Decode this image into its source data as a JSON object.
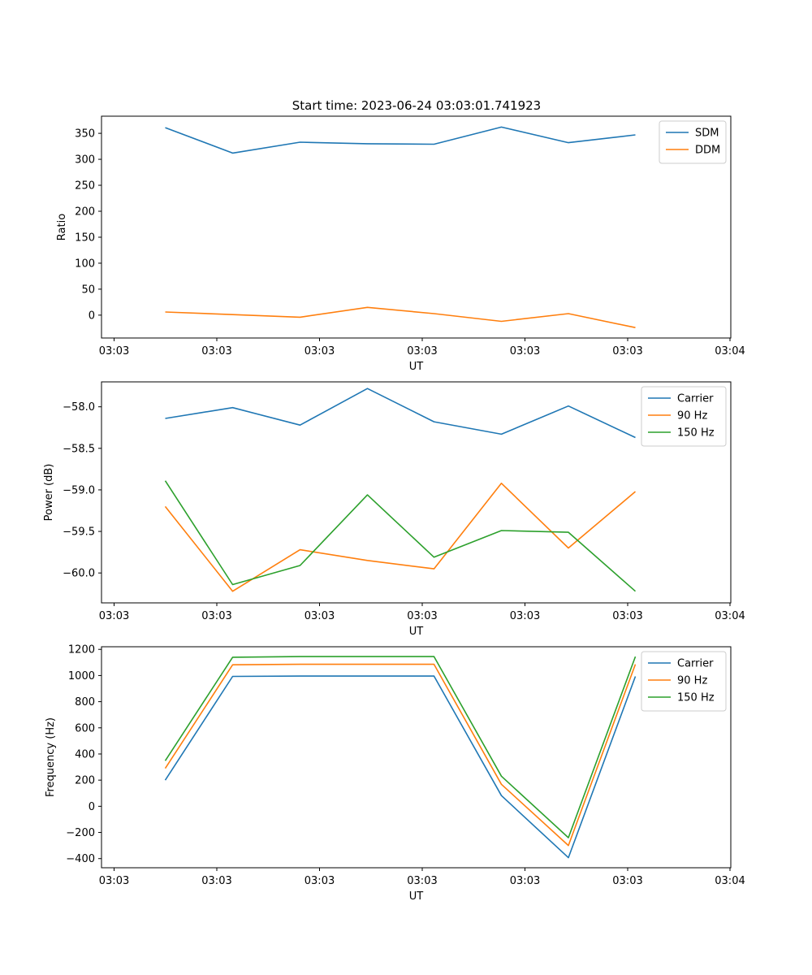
{
  "figure_title": "Start time: 2023-06-24 03:03:01.741923",
  "chart_data": [
    {
      "type": "line",
      "title": "Start time: 2023-06-24 03:03:01.741923",
      "xlabel": "UT",
      "ylabel": "Ratio",
      "xticks": [
        "03:03",
        "03:03",
        "03:03",
        "03:03",
        "03:03",
        "03:03",
        "03:04"
      ],
      "yticks": [
        0,
        50,
        100,
        150,
        200,
        250,
        300,
        350
      ],
      "ylim": [
        -44,
        383
      ],
      "legend_position": "upper-right",
      "series": [
        {
          "name": "SDM",
          "color": "#1f77b4",
          "values": [
            361,
            312,
            333,
            330,
            329,
            362,
            332,
            347
          ]
        },
        {
          "name": "DDM",
          "color": "#ff7f0e",
          "values": [
            6,
            1,
            -4,
            15,
            3,
            -12,
            3,
            -24
          ]
        }
      ]
    },
    {
      "type": "line",
      "title": "",
      "xlabel": "UT",
      "ylabel": "Power (dB)",
      "xticks": [
        "03:03",
        "03:03",
        "03:03",
        "03:03",
        "03:03",
        "03:03",
        "03:04"
      ],
      "yticks": [
        -58.0,
        -58.5,
        -59.0,
        -59.5,
        -60.0
      ],
      "ylim": [
        -60.36,
        -57.7
      ],
      "legend_position": "upper-right",
      "series": [
        {
          "name": "Carrier",
          "color": "#1f77b4",
          "values": [
            -58.14,
            -58.01,
            -58.22,
            -57.78,
            -58.18,
            -58.33,
            -57.99,
            -58.37
          ]
        },
        {
          "name": "90 Hz",
          "color": "#ff7f0e",
          "values": [
            -59.2,
            -60.22,
            -59.72,
            -59.85,
            -59.95,
            -58.92,
            -59.7,
            -59.02
          ]
        },
        {
          "name": "150 Hz",
          "color": "#2ca02c",
          "values": [
            -58.89,
            -60.14,
            -59.91,
            -59.06,
            -59.81,
            -59.49,
            -59.51,
            -60.22
          ]
        }
      ]
    },
    {
      "type": "line",
      "title": "",
      "xlabel": "UT",
      "ylabel": "Frequency (Hz)",
      "xticks": [
        "03:03",
        "03:03",
        "03:03",
        "03:03",
        "03:03",
        "03:03",
        "03:04"
      ],
      "yticks": [
        -400,
        -200,
        0,
        200,
        400,
        600,
        800,
        1000,
        1200
      ],
      "ylim": [
        -470,
        1220
      ],
      "legend_position": "upper-right",
      "series": [
        {
          "name": "Carrier",
          "color": "#1f77b4",
          "values": [
            200,
            993,
            996,
            996,
            996,
            82,
            -393,
            993
          ]
        },
        {
          "name": "90 Hz",
          "color": "#ff7f0e",
          "values": [
            290,
            1082,
            1086,
            1086,
            1086,
            168,
            -300,
            1086
          ]
        },
        {
          "name": "150 Hz",
          "color": "#2ca02c",
          "values": [
            348,
            1140,
            1145,
            1145,
            1145,
            230,
            -240,
            1145
          ]
        }
      ]
    }
  ]
}
